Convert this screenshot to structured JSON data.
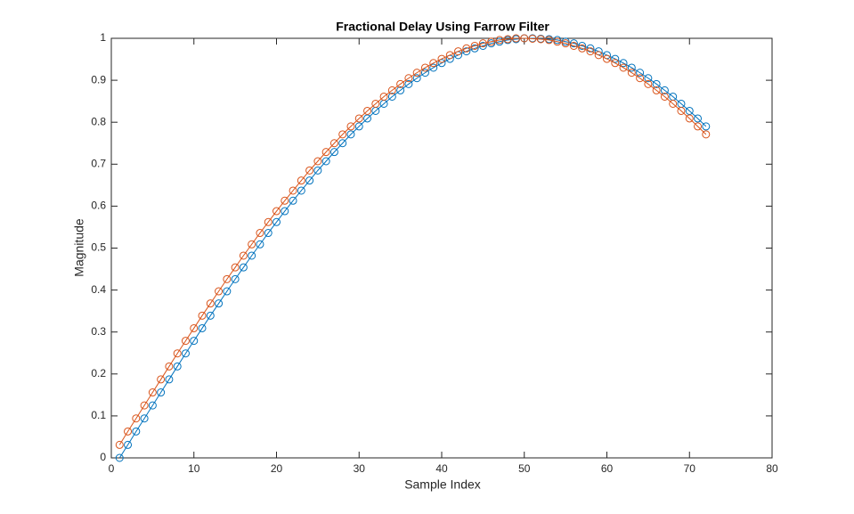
{
  "chart_data": {
    "type": "line",
    "title": "Fractional Delay Using Farrow Filter",
    "x_label": "Sample Index",
    "y_label": "Magnitude",
    "x": [
      1,
      2,
      3,
      4,
      5,
      6,
      7,
      8,
      9,
      10,
      11,
      12,
      13,
      14,
      15,
      16,
      17,
      18,
      19,
      20,
      21,
      22,
      23,
      24,
      25,
      26,
      27,
      28,
      29,
      30,
      31,
      32,
      33,
      34,
      35,
      36,
      37,
      38,
      39,
      40,
      41,
      42,
      43,
      44,
      45,
      46,
      47,
      48,
      49,
      50,
      51,
      52,
      53,
      54,
      55,
      56,
      57,
      58,
      59,
      60,
      61,
      62,
      63,
      64,
      65,
      66,
      67,
      68,
      69,
      70,
      71,
      72
    ],
    "series": [
      {
        "color": "#0072BD",
        "values": [
          0,
          0.031,
          0.063,
          0.094,
          0.125,
          0.156,
          0.187,
          0.218,
          0.249,
          0.279,
          0.309,
          0.339,
          0.368,
          0.397,
          0.426,
          0.454,
          0.482,
          0.509,
          0.536,
          0.562,
          0.588,
          0.613,
          0.637,
          0.661,
          0.685,
          0.707,
          0.729,
          0.75,
          0.771,
          0.79,
          0.809,
          0.827,
          0.844,
          0.861,
          0.876,
          0.891,
          0.905,
          0.918,
          0.93,
          0.941,
          0.951,
          0.96,
          0.969,
          0.976,
          0.982,
          0.988,
          0.992,
          0.996,
          0.998,
          1.0,
          1.0,
          0.999,
          0.998,
          0.996,
          0.992,
          0.988,
          0.982,
          0.976,
          0.969,
          0.96,
          0.951,
          0.941,
          0.93,
          0.918,
          0.905,
          0.891,
          0.876,
          0.861,
          0.844,
          0.827,
          0.809,
          0.79
        ]
      },
      {
        "color": "#D95319",
        "values": [
          0.031,
          0.063,
          0.094,
          0.125,
          0.156,
          0.187,
          0.218,
          0.249,
          0.279,
          0.309,
          0.339,
          0.368,
          0.397,
          0.426,
          0.454,
          0.482,
          0.509,
          0.536,
          0.562,
          0.588,
          0.613,
          0.637,
          0.661,
          0.685,
          0.707,
          0.729,
          0.75,
          0.771,
          0.79,
          0.809,
          0.827,
          0.844,
          0.861,
          0.876,
          0.891,
          0.905,
          0.918,
          0.93,
          0.941,
          0.951,
          0.96,
          0.969,
          0.976,
          0.982,
          0.988,
          0.992,
          0.996,
          0.998,
          1.0,
          1.0,
          0.999,
          0.998,
          0.996,
          0.992,
          0.988,
          0.982,
          0.976,
          0.969,
          0.96,
          0.951,
          0.941,
          0.93,
          0.918,
          0.905,
          0.891,
          0.876,
          0.861,
          0.844,
          0.827,
          0.809,
          0.79,
          0.771
        ]
      }
    ],
    "xlim": [
      0,
      80
    ],
    "xticks": [
      0,
      10,
      20,
      30,
      40,
      50,
      60,
      70,
      80
    ],
    "ylim": [
      0,
      1
    ],
    "yticks": [
      0,
      0.1,
      0.2,
      0.3,
      0.4,
      0.5,
      0.6,
      0.7,
      0.8,
      0.9,
      1
    ],
    "grid": false,
    "marker": "circle"
  }
}
